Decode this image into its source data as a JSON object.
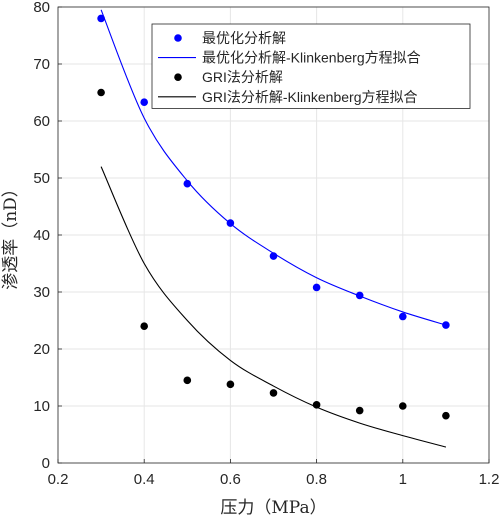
{
  "chart_data": {
    "type": "scatter",
    "xlabel": "压力（MPa）",
    "ylabel": "渗透率（nD）",
    "xlim": [
      0.2,
      1.2
    ],
    "ylim": [
      0,
      80
    ],
    "xticks": [
      0.2,
      0.4,
      0.6,
      0.8,
      1,
      1.2
    ],
    "xtick_labels": [
      "0.2",
      "0.4",
      "0.6",
      "0.8",
      "1",
      "1.2"
    ],
    "yticks": [
      0,
      10,
      20,
      30,
      40,
      50,
      60,
      70,
      80
    ],
    "ytick_labels": [
      "0",
      "10",
      "20",
      "30",
      "40",
      "50",
      "60",
      "70",
      "80"
    ],
    "grid": true,
    "legend_position": "top-right",
    "series": [
      {
        "name": "最优化分析解",
        "kind": "scatter",
        "color": "#0000ff",
        "x": [
          0.3,
          0.4,
          0.5,
          0.6,
          0.7,
          0.8,
          0.9,
          1.0,
          1.1
        ],
        "y": [
          78,
          63.3,
          49,
          42.1,
          36.3,
          30.8,
          29.4,
          25.7,
          24.2
        ]
      },
      {
        "name": "最优化分析解-Klinkenberg方程拟合",
        "kind": "line",
        "color": "#0000ff",
        "x": [
          0.3,
          0.4,
          0.5,
          0.6,
          0.7,
          0.8,
          0.9,
          1.0,
          1.1
        ],
        "y": [
          79.5,
          60.5,
          49.5,
          42,
          36.8,
          32.5,
          29.3,
          26.5,
          24.2
        ]
      },
      {
        "name": "GRI法分析解",
        "kind": "scatter",
        "color": "#000000",
        "x": [
          0.3,
          0.4,
          0.5,
          0.6,
          0.7,
          0.8,
          0.9,
          1.0,
          1.1
        ],
        "y": [
          65,
          24,
          14.5,
          13.8,
          12.3,
          10.2,
          9.2,
          10,
          8.3
        ]
      },
      {
        "name": "GRI法分析解-Klinkenberg方程拟合",
        "kind": "line",
        "color": "#000000",
        "x": [
          0.3,
          0.4,
          0.5,
          0.6,
          0.7,
          0.8,
          0.9,
          1.0,
          1.1
        ],
        "y": [
          52,
          35,
          25,
          18,
          13.5,
          9.8,
          7,
          4.8,
          2.8
        ]
      }
    ]
  }
}
